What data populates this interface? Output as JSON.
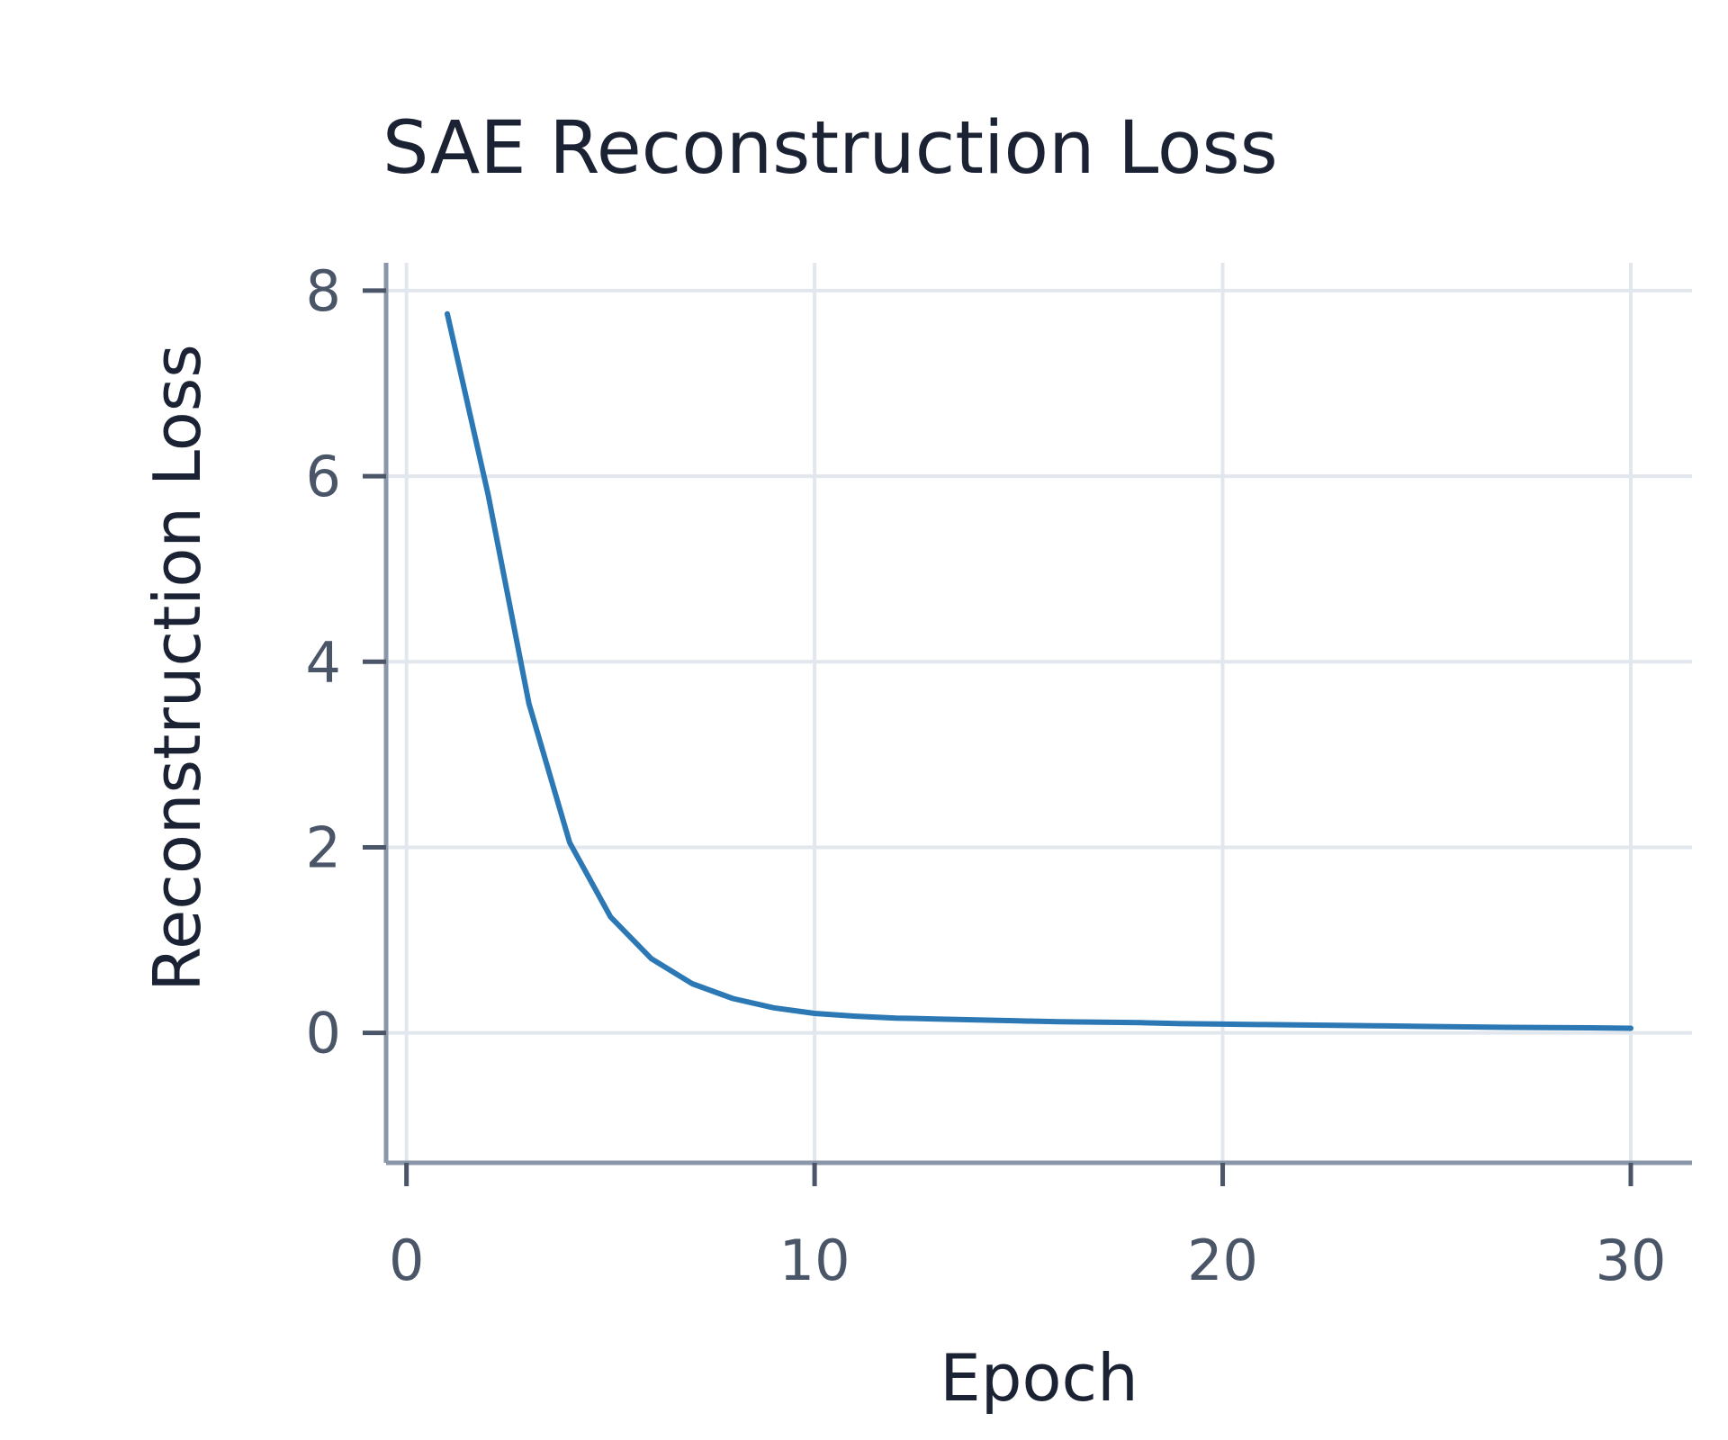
{
  "chart_data": {
    "type": "line",
    "title": "SAE Reconstruction Loss",
    "xlabel": "Epoch",
    "ylabel": "Reconstruction Loss",
    "xlim": [
      -0.5,
      31.5
    ],
    "ylim": [
      -1.4,
      8.3
    ],
    "x_ticks": [
      0,
      10,
      20,
      30
    ],
    "y_ticks": [
      0,
      2,
      4,
      6,
      8
    ],
    "grid": true,
    "series": [
      {
        "color": "#2b78b5",
        "x": [
          1,
          2,
          3,
          4,
          5,
          6,
          7,
          8,
          9,
          10,
          11,
          12,
          13,
          14,
          15,
          16,
          17,
          18,
          19,
          20,
          21,
          22,
          23,
          24,
          25,
          26,
          27,
          28,
          29,
          30
        ],
        "y": [
          7.75,
          5.8,
          3.55,
          2.05,
          1.25,
          0.8,
          0.53,
          0.37,
          0.27,
          0.21,
          0.18,
          0.16,
          0.15,
          0.14,
          0.13,
          0.12,
          0.115,
          0.11,
          0.1,
          0.095,
          0.09,
          0.085,
          0.08,
          0.075,
          0.07,
          0.065,
          0.06,
          0.058,
          0.055,
          0.05
        ]
      }
    ]
  }
}
